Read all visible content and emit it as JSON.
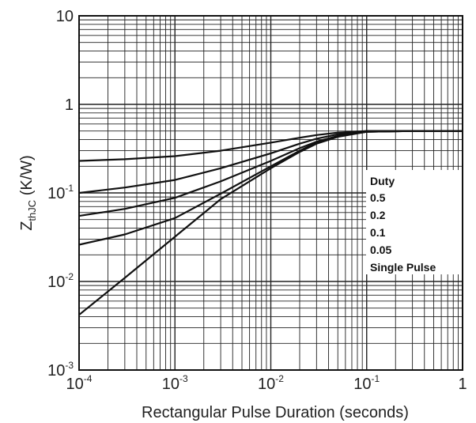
{
  "chart_data": {
    "type": "line",
    "x_scale": "log",
    "y_scale": "log",
    "xlim": [
      0.0001,
      1
    ],
    "ylim": [
      0.001,
      10
    ],
    "grid": true,
    "xlabel": "Rectangular Pulse Duration (seconds)",
    "ylabel_main": "Z",
    "ylabel_sub": "thJC",
    "ylabel_unit": " (K/W)",
    "x_ticks": [
      {
        "base": "10",
        "exp": "-4",
        "value": 0.0001
      },
      {
        "base": "10",
        "exp": "-3",
        "value": 0.001
      },
      {
        "base": "10",
        "exp": "-2",
        "value": 0.01
      },
      {
        "base": "10",
        "exp": "-1",
        "value": 0.1
      },
      {
        "base": "1",
        "exp": "",
        "value": 1
      }
    ],
    "y_ticks": [
      {
        "base": "10",
        "exp": "-3",
        "value": 0.001
      },
      {
        "base": "10",
        "exp": "-2",
        "value": 0.01
      },
      {
        "base": "10",
        "exp": "-1",
        "value": 0.1
      },
      {
        "base": "1",
        "exp": "",
        "value": 1
      },
      {
        "base": "10",
        "exp": "",
        "value": 10
      }
    ],
    "legend_title": "Duty",
    "legend_placement": "right",
    "series": [
      {
        "name": "0.5",
        "x": [
          0.0001,
          0.0003,
          0.001,
          0.003,
          0.01,
          0.02,
          0.03,
          0.05,
          0.1,
          0.3,
          1
        ],
        "y": [
          0.23,
          0.24,
          0.26,
          0.3,
          0.37,
          0.42,
          0.45,
          0.48,
          0.5,
          0.5,
          0.5
        ]
      },
      {
        "name": "0.2",
        "x": [
          0.0001,
          0.0003,
          0.001,
          0.003,
          0.01,
          0.02,
          0.03,
          0.05,
          0.1,
          0.3,
          1
        ],
        "y": [
          0.1,
          0.115,
          0.14,
          0.19,
          0.28,
          0.36,
          0.41,
          0.46,
          0.5,
          0.5,
          0.5
        ]
      },
      {
        "name": "0.1",
        "x": [
          0.0001,
          0.0003,
          0.001,
          0.003,
          0.01,
          0.02,
          0.03,
          0.05,
          0.1,
          0.3,
          1
        ],
        "y": [
          0.055,
          0.066,
          0.088,
          0.135,
          0.23,
          0.32,
          0.38,
          0.44,
          0.49,
          0.5,
          0.5
        ]
      },
      {
        "name": "0.05",
        "x": [
          0.0001,
          0.0003,
          0.001,
          0.003,
          0.01,
          0.02,
          0.03,
          0.05,
          0.1,
          0.3,
          1
        ],
        "y": [
          0.026,
          0.034,
          0.052,
          0.098,
          0.2,
          0.3,
          0.37,
          0.44,
          0.49,
          0.5,
          0.5
        ]
      },
      {
        "name": "Single Pulse",
        "x": [
          0.0001,
          0.0003,
          0.001,
          0.003,
          0.01,
          0.02,
          0.03,
          0.05,
          0.1,
          0.3,
          1
        ],
        "y": [
          0.0042,
          0.011,
          0.032,
          0.085,
          0.19,
          0.29,
          0.36,
          0.43,
          0.49,
          0.5,
          0.5
        ]
      }
    ],
    "series_color": "#111111"
  }
}
